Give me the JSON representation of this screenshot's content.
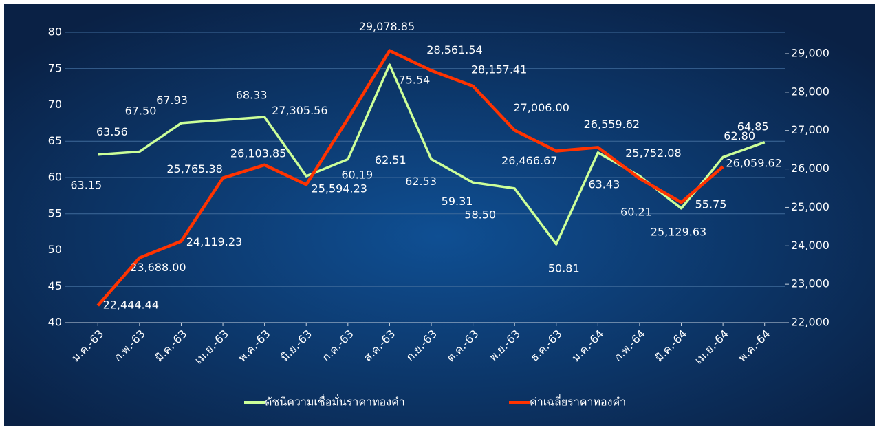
{
  "chart_data": {
    "type": "line",
    "categories": [
      "ม.ค.-63",
      "ก.พ.-63",
      "มี.ค.-63",
      "เม.ย.-63",
      "พ.ค.-63",
      "มิ.ย.-63",
      "ก.ค.-63",
      "ส.ค.-63",
      "ก.ย.-63",
      "ต.ค.-63",
      "พ.ย.-63",
      "ธ.ค.-63",
      "ม.ค.-64",
      "ก.พ.-64",
      "มี.ค.-64",
      "เม.ย.-64",
      "พ.ค.-64"
    ],
    "series": [
      {
        "name": "ดัชนีความเชื่อมั่นราคาทองคำ",
        "color": "#ccff99",
        "values": [
          63.15,
          63.56,
          67.5,
          67.93,
          68.33,
          60.19,
          62.51,
          75.54,
          62.53,
          59.31,
          58.5,
          50.81,
          63.43,
          60.21,
          55.75,
          62.8,
          64.85
        ],
        "value_labels": [
          "63.15",
          "63.56",
          "67.50",
          "67.93",
          "68.33",
          "60.19",
          "62.51",
          "75.54",
          "62.53",
          "59.31",
          "58.50",
          "50.81",
          "63.43",
          "60.21",
          "55.75",
          "62.80",
          "64.85"
        ]
      },
      {
        "name": "ค่าเฉลี่ยราคาทองคำ",
        "color": "#ff3300",
        "axis": "y2",
        "values": [
          22444.44,
          23688.0,
          24119.23,
          25765.38,
          26103.85,
          25594.23,
          27305.56,
          29078.85,
          28561.54,
          28157.41,
          27006.0,
          26466.67,
          26559.62,
          25752.08,
          25129.63,
          26059.62,
          null
        ],
        "value_labels": [
          "22,444.44",
          "23,688.00",
          "24,119.23",
          "25,765.38",
          "26,103.85",
          "25,594.23",
          "27,305.56",
          "29,078.85",
          "28,561.54",
          "28,157.41",
          "27,006.00",
          "26,466.67",
          "26,559.62",
          "25,752.08",
          "25,129.63",
          "26,059.62",
          null
        ]
      }
    ],
    "ylim": [
      40,
      80
    ],
    "yticks": [
      40,
      45,
      50,
      55,
      60,
      65,
      70,
      75,
      80
    ],
    "y2lim": [
      22000,
      29555
    ],
    "y2ticks": [
      {
        "value": 22000,
        "label": "22,000"
      },
      {
        "value": 23000,
        "label": "23,000"
      },
      {
        "value": 24000,
        "label": "24,000"
      },
      {
        "value": 25000,
        "label": "25,000"
      },
      {
        "value": 26000,
        "label": "26,000"
      },
      {
        "value": 27000,
        "label": "27,000"
      },
      {
        "value": 28000,
        "label": "28,000"
      },
      {
        "value": 29000,
        "label": "29,000"
      }
    ],
    "grid": true,
    "legend": "bottom"
  }
}
